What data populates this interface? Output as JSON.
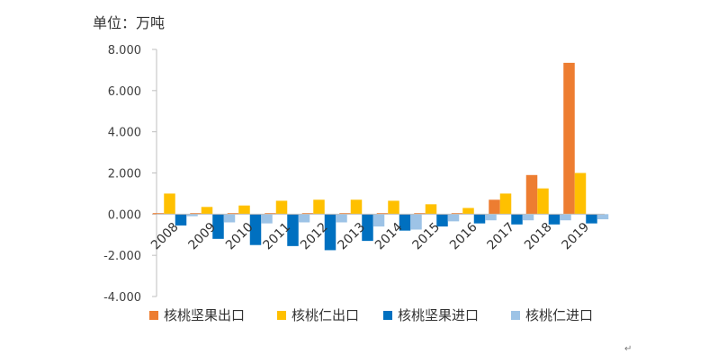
{
  "chart_data": {
    "type": "bar",
    "unit_label": "单位：万吨",
    "categories": [
      "2008",
      "2009",
      "2010",
      "2011",
      "2012",
      "2013",
      "2014",
      "2015",
      "2016",
      "2017",
      "2018",
      "2019"
    ],
    "series": [
      {
        "name": "核桃坚果出口",
        "color": "#ED7D31",
        "values": [
          0.05,
          0.05,
          0.05,
          0.05,
          0.05,
          0.05,
          0.05,
          0.05,
          0.05,
          0.7,
          1.9,
          7.35
        ]
      },
      {
        "name": "核桃仁出口",
        "color": "#FFC000",
        "values": [
          1.0,
          0.35,
          0.42,
          0.65,
          0.7,
          0.7,
          0.65,
          0.48,
          0.3,
          1.0,
          1.25,
          2.0
        ]
      },
      {
        "name": "核桃坚果进口",
        "color": "#0070C0",
        "values": [
          -0.55,
          -1.2,
          -1.5,
          -1.55,
          -1.75,
          -1.3,
          -0.8,
          -0.6,
          -0.45,
          -0.5,
          -0.5,
          -0.45
        ]
      },
      {
        "name": "核桃仁进口",
        "color": "#9DC3E6",
        "values": [
          -0.1,
          -0.4,
          -0.45,
          -0.4,
          -0.4,
          -0.6,
          -0.75,
          -0.35,
          -0.3,
          -0.3,
          -0.3,
          -0.25
        ]
      }
    ],
    "ylim": [
      -4,
      8
    ],
    "yticks": [
      8,
      6,
      4,
      2,
      0,
      -2,
      -4
    ],
    "ytick_labels": [
      "8.000",
      "6.000",
      "4.000",
      "2.000",
      "0.000",
      "-2.000",
      "-4.000"
    ],
    "grid": false,
    "legend_position": "bottom"
  },
  "footer_mark": "↵"
}
